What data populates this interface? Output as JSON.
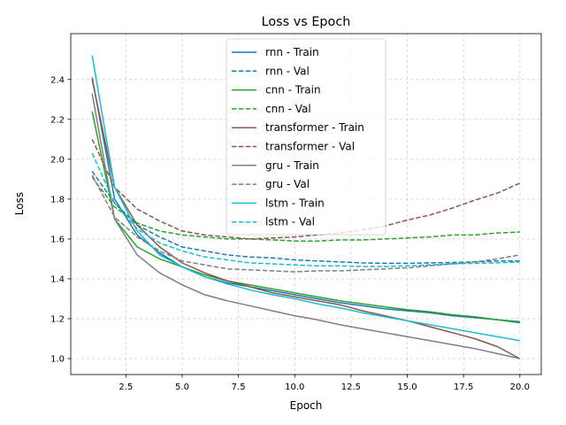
{
  "chart_data": {
    "type": "line",
    "title": "Loss vs Epoch",
    "xlabel": "Epoch",
    "ylabel": "Loss",
    "xlim": [
      0.05,
      20.95
    ],
    "ylim": [
      0.92,
      2.63
    ],
    "xticks": [
      2.5,
      5.0,
      7.5,
      10.0,
      12.5,
      15.0,
      17.5,
      20.0
    ],
    "xtick_labels": [
      "2.5",
      "5.0",
      "7.5",
      "10.0",
      "12.5",
      "15.0",
      "17.5",
      "20.0"
    ],
    "yticks": [
      1.0,
      1.2,
      1.4,
      1.6,
      1.8,
      2.0,
      2.2,
      2.4
    ],
    "ytick_labels": [
      "1.0",
      "1.2",
      "1.4",
      "1.6",
      "1.8",
      "2.0",
      "2.2",
      "2.4"
    ],
    "grid": true,
    "legend_position": "top-center",
    "x": [
      1,
      2,
      3,
      4,
      5,
      6,
      7,
      8,
      9,
      10,
      11,
      12,
      13,
      14,
      15,
      16,
      17,
      18,
      19,
      20
    ],
    "series": [
      {
        "name": "rnn - Train",
        "color": "#1f77b4",
        "dash": "solid",
        "values": [
          2.41,
          1.8,
          1.62,
          1.53,
          1.46,
          1.41,
          1.38,
          1.36,
          1.34,
          1.32,
          1.3,
          1.28,
          1.265,
          1.25,
          1.24,
          1.23,
          1.215,
          1.205,
          1.195,
          1.18
        ]
      },
      {
        "name": "rnn - Val",
        "color": "#1f77b4",
        "dash": "dashed",
        "values": [
          1.94,
          1.78,
          1.67,
          1.61,
          1.56,
          1.54,
          1.52,
          1.51,
          1.505,
          1.495,
          1.49,
          1.485,
          1.48,
          1.478,
          1.478,
          1.48,
          1.482,
          1.485,
          1.49,
          1.49
        ]
      },
      {
        "name": "cnn - Train",
        "color": "#2ca02c",
        "dash": "solid",
        "values": [
          2.24,
          1.7,
          1.56,
          1.5,
          1.46,
          1.42,
          1.39,
          1.37,
          1.35,
          1.33,
          1.31,
          1.29,
          1.275,
          1.26,
          1.245,
          1.235,
          1.22,
          1.21,
          1.195,
          1.185
        ]
      },
      {
        "name": "cnn - Val",
        "color": "#2ca02c",
        "dash": "dashed",
        "values": [
          1.91,
          1.76,
          1.68,
          1.64,
          1.62,
          1.61,
          1.6,
          1.6,
          1.595,
          1.59,
          1.59,
          1.595,
          1.595,
          1.6,
          1.605,
          1.61,
          1.62,
          1.62,
          1.63,
          1.635
        ]
      },
      {
        "name": "transformer - Train",
        "color": "#8c564b",
        "dash": "solid",
        "values": [
          2.4,
          1.86,
          1.67,
          1.56,
          1.48,
          1.43,
          1.39,
          1.36,
          1.33,
          1.31,
          1.29,
          1.27,
          1.24,
          1.215,
          1.19,
          1.16,
          1.13,
          1.1,
          1.06,
          1.0
        ]
      },
      {
        "name": "transformer - Val",
        "color": "#8c564b",
        "dash": "dashed",
        "values": [
          2.1,
          1.86,
          1.75,
          1.69,
          1.64,
          1.62,
          1.61,
          1.6,
          1.605,
          1.61,
          1.62,
          1.63,
          1.645,
          1.665,
          1.695,
          1.72,
          1.755,
          1.795,
          1.83,
          1.88
        ]
      },
      {
        "name": "gru - Train",
        "color": "#7f7f7f",
        "dash": "solid",
        "values": [
          2.33,
          1.7,
          1.52,
          1.43,
          1.37,
          1.32,
          1.29,
          1.265,
          1.24,
          1.215,
          1.195,
          1.17,
          1.15,
          1.13,
          1.11,
          1.09,
          1.07,
          1.05,
          1.025,
          1.0
        ]
      },
      {
        "name": "gru - Val",
        "color": "#7f7f7f",
        "dash": "dashed",
        "values": [
          1.92,
          1.71,
          1.61,
          1.54,
          1.49,
          1.47,
          1.45,
          1.445,
          1.44,
          1.435,
          1.44,
          1.44,
          1.445,
          1.45,
          1.455,
          1.465,
          1.475,
          1.485,
          1.5,
          1.52
        ]
      },
      {
        "name": "lstm - Train",
        "color": "#17becf",
        "dash": "solid",
        "values": [
          2.52,
          1.86,
          1.64,
          1.52,
          1.46,
          1.41,
          1.375,
          1.345,
          1.32,
          1.3,
          1.275,
          1.255,
          1.23,
          1.21,
          1.19,
          1.17,
          1.15,
          1.13,
          1.11,
          1.09
        ]
      },
      {
        "name": "lstm - Val",
        "color": "#17becf",
        "dash": "dashed",
        "values": [
          2.03,
          1.78,
          1.65,
          1.58,
          1.54,
          1.51,
          1.495,
          1.48,
          1.475,
          1.47,
          1.465,
          1.465,
          1.462,
          1.462,
          1.465,
          1.47,
          1.475,
          1.478,
          1.48,
          1.485
        ]
      }
    ]
  }
}
